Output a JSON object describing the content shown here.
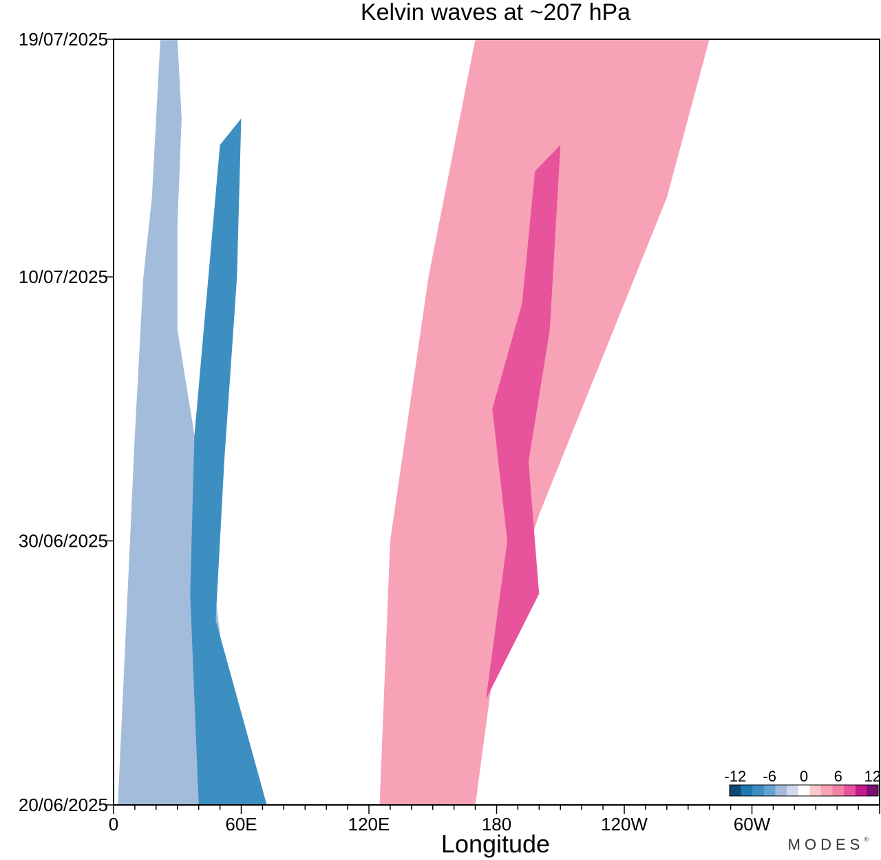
{
  "brand": {
    "text": "MODES",
    "mark": "®"
  },
  "chart_data": {
    "type": "heatmap",
    "title": "Kelvin waves at ~207 hPa",
    "xlabel": "Longitude",
    "ylabel": "",
    "x_ticks": [
      "0",
      "60E",
      "120E",
      "180",
      "120W",
      "60W"
    ],
    "x_tick_degrees": [
      0,
      60,
      120,
      180,
      240,
      300
    ],
    "x_range_degrees_east": [
      0,
      360
    ],
    "y_ticks": [
      "19/07/2025",
      "10/07/2025",
      "30/06/2025",
      "20/06/2025"
    ],
    "y_tick_dates": [
      "2025-07-19",
      "2025-07-10",
      "2025-06-30",
      "2025-06-20"
    ],
    "y_range": [
      "2025-06-20",
      "2025-07-19"
    ],
    "colorbar": {
      "tick_labels": [
        "-12",
        "-6",
        "0",
        "6",
        "12"
      ],
      "tick_values": [
        -12,
        -6,
        0,
        6,
        12
      ],
      "levels": [
        -12,
        -10,
        -8,
        -6,
        -4,
        -2,
        0,
        2,
        4,
        6,
        8,
        10,
        12
      ],
      "colors": [
        "#0d4a73",
        "#1f77b0",
        "#3d8fc2",
        "#64a3cf",
        "#a4bcdb",
        "#d5d8ea",
        "#ffffff",
        "#f9c9c9",
        "#f7a2b6",
        "#f082a6",
        "#e8549b",
        "#c41a8c",
        "#7a0f72"
      ]
    },
    "bands": [
      {
        "name": "negative-main",
        "level": -4,
        "poly": [
          [
            2,
            2025.062
          ],
          [
            10,
            2025.0704
          ],
          [
            14,
            2025.071
          ],
          [
            18,
            2025.0713
          ],
          [
            22,
            2025.0719
          ],
          [
            30,
            2025.0719
          ],
          [
            32,
            2025.0716
          ],
          [
            30,
            2025.0712
          ],
          [
            30,
            2025.0708
          ],
          [
            40,
            2025.0703
          ],
          [
            60,
            2025.062
          ]
        ]
      },
      {
        "name": "negative-core",
        "level": -8,
        "poly": [
          [
            40,
            2025.062
          ],
          [
            36,
            2025.0628
          ],
          [
            38,
            2025.0704
          ],
          [
            50,
            2025.0715
          ],
          [
            60,
            2025.0716
          ],
          [
            58,
            2025.071
          ],
          [
            52,
            2025.0703
          ],
          [
            48,
            2025.0627
          ],
          [
            72,
            2025.062
          ]
        ]
      },
      {
        "name": "positive-main",
        "level": 4,
        "poly": [
          [
            125,
            2025.062
          ],
          [
            130,
            2025.063
          ],
          [
            148,
            2025.071
          ],
          [
            170,
            2025.0719
          ],
          [
            280,
            2025.0719
          ],
          [
            260,
            2025.0713
          ],
          [
            230,
            2025.0707
          ],
          [
            200,
            2025.0701
          ],
          [
            180,
            2025.0626
          ],
          [
            170,
            2025.062
          ]
        ]
      },
      {
        "name": "positive-core",
        "level": 8,
        "poly": [
          [
            175,
            2025.0624
          ],
          [
            185,
            2025.063
          ],
          [
            178,
            2025.0705
          ],
          [
            192,
            2025.0709
          ],
          [
            198,
            2025.0714
          ],
          [
            210,
            2025.0715
          ],
          [
            205,
            2025.0708
          ],
          [
            195,
            2025.0703
          ],
          [
            200,
            2025.0628
          ]
        ]
      }
    ]
  }
}
